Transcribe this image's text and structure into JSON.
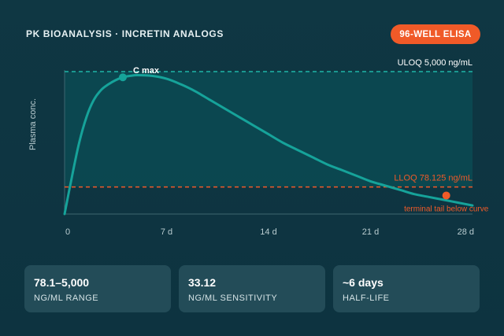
{
  "header": {
    "title": "PK BIOANALYSIS · INCRETIN ANALOGS",
    "badge": "96-WELL ELISA"
  },
  "colors": {
    "background": "#0f3440",
    "curve": "#16a39a",
    "shaded_range": "#0b4a52",
    "uloq_line": "#1fb5a8",
    "lloq_line": "#f05a28",
    "badge": "#f05a28",
    "stat_card": "#234c58"
  },
  "chart_data": {
    "type": "line",
    "ylabel": "Plasma conc.",
    "xlabel": "",
    "x_unit": "d",
    "xlim": [
      0,
      28
    ],
    "x_ticks": [
      "0",
      "7 d",
      "14 d",
      "21 d",
      "28 d"
    ],
    "ylim": [
      0,
      1
    ],
    "series": [
      {
        "x": [
          0,
          0.5,
          1,
          1.5,
          2,
          2.5,
          3,
          3.5,
          4,
          4.5,
          5,
          6,
          7,
          8,
          9,
          10,
          11,
          12,
          13,
          14,
          15,
          16,
          17,
          18,
          19,
          20,
          21,
          22,
          23,
          24,
          25,
          26,
          27,
          28
        ],
        "y": [
          0,
          0.26,
          0.5,
          0.68,
          0.8,
          0.87,
          0.91,
          0.94,
          0.96,
          0.97,
          0.975,
          0.97,
          0.95,
          0.91,
          0.86,
          0.8,
          0.74,
          0.68,
          0.62,
          0.56,
          0.5,
          0.45,
          0.4,
          0.35,
          0.31,
          0.27,
          0.23,
          0.2,
          0.17,
          0.14,
          0.12,
          0.1,
          0.08,
          0.06
        ]
      }
    ],
    "reference_lines": [
      {
        "label": "ULOQ 5,000 ng/mL",
        "y": 1.0
      },
      {
        "label": "LLOQ 78.125 ng/mL",
        "y": 0.19
      }
    ],
    "annotations": [
      {
        "label": "C max",
        "x": 4,
        "y": 0.96
      },
      {
        "label": "terminal tail below curve",
        "x": 26.2,
        "y": 0.13
      }
    ]
  },
  "stats": [
    {
      "value": "78.1–5,000",
      "label": "NG/ML RANGE"
    },
    {
      "value": "33.12",
      "label": "NG/ML SENSITIVITY"
    },
    {
      "value": "~6 days",
      "label": "HALF-LIFE"
    }
  ]
}
